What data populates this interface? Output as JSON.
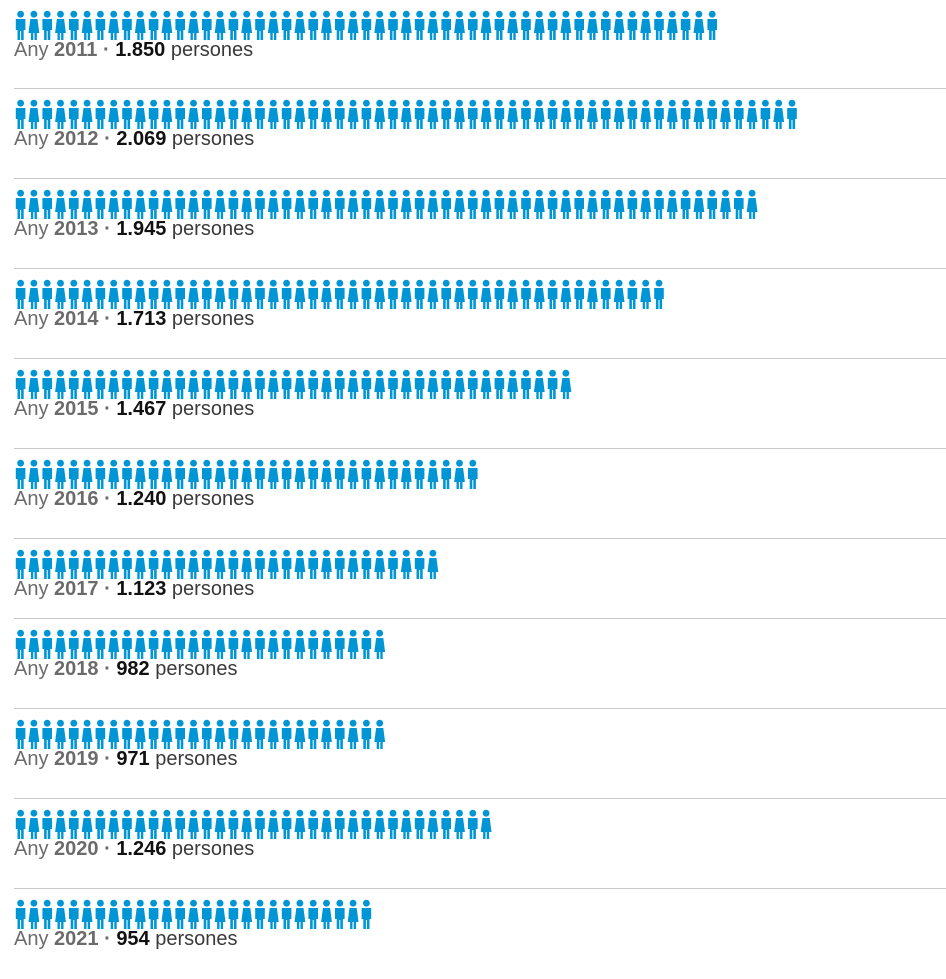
{
  "chart_data": {
    "type": "pictogram",
    "title": "",
    "label_word": "Any",
    "unit": "persones",
    "icon": "person-icon",
    "icon_color": "#0096d6",
    "persons_per_icon": 35,
    "rows": [
      {
        "year": "2011",
        "value": 1850,
        "label": "1.850"
      },
      {
        "year": "2012",
        "value": 2069,
        "label": "2.069"
      },
      {
        "year": "2013",
        "value": 1945,
        "label": "1.945"
      },
      {
        "year": "2014",
        "value": 1713,
        "label": "1.713"
      },
      {
        "year": "2015",
        "value": 1467,
        "label": "1.467"
      },
      {
        "year": "2016",
        "value": 1240,
        "label": "1.240"
      },
      {
        "year": "2017",
        "value": 1123,
        "label": "1.123"
      },
      {
        "year": "2018",
        "value": 982,
        "label": "982"
      },
      {
        "year": "2019",
        "value": 971,
        "label": "971"
      },
      {
        "year": "2020",
        "value": 1246,
        "label": "1.246"
      },
      {
        "year": "2021",
        "value": 954,
        "label": "954"
      }
    ]
  }
}
